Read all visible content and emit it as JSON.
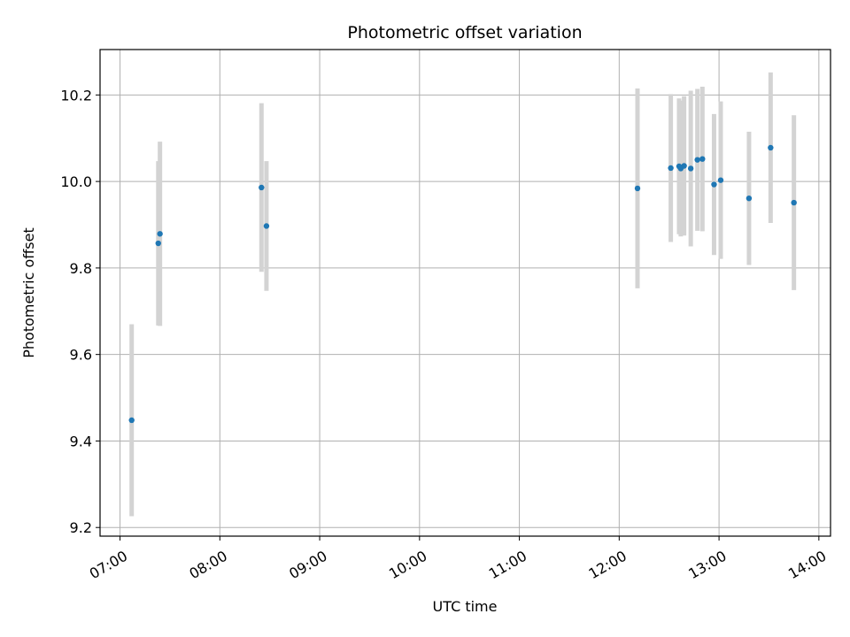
{
  "chart_data": {
    "type": "scatter",
    "title": "Photometric offset variation",
    "xlabel": "UTC time",
    "ylabel": "Photometric offset",
    "grid": true,
    "legend": "none",
    "colors": {
      "point": "#1f77b4",
      "errorbar": "#d3d3d3",
      "grid": "#b0b0b0"
    },
    "x_ticks": [
      "07:00",
      "08:00",
      "09:00",
      "10:00",
      "11:00",
      "12:00",
      "13:00",
      "14:00"
    ],
    "y_ticks": [
      "9.2",
      "9.4",
      "9.6",
      "9.8",
      "10.0",
      "10.2"
    ],
    "xlim": [
      "06:48",
      "14:07"
    ],
    "ylim": [
      9.18,
      10.305
    ],
    "points": [
      {
        "x": "07:07",
        "y": 9.448,
        "err": 0.222
      },
      {
        "x": "07:23",
        "y": 9.857,
        "err": 0.19
      },
      {
        "x": "07:24",
        "y": 9.879,
        "err": 0.213
      },
      {
        "x": "08:25",
        "y": 9.986,
        "err": 0.195
      },
      {
        "x": "08:28",
        "y": 9.897,
        "err": 0.15
      },
      {
        "x": "12:11",
        "y": 9.984,
        "err": 0.231
      },
      {
        "x": "12:31",
        "y": 10.031,
        "err": 0.171
      },
      {
        "x": "12:36",
        "y": 10.035,
        "err": 0.157
      },
      {
        "x": "12:37",
        "y": 10.03,
        "err": 0.157
      },
      {
        "x": "12:39",
        "y": 10.036,
        "err": 0.161
      },
      {
        "x": "12:43",
        "y": 10.03,
        "err": 0.18
      },
      {
        "x": "12:47",
        "y": 10.05,
        "err": 0.164
      },
      {
        "x": "12:50",
        "y": 10.052,
        "err": 0.167
      },
      {
        "x": "12:57",
        "y": 9.993,
        "err": 0.163
      },
      {
        "x": "13:01",
        "y": 10.003,
        "err": 0.182
      },
      {
        "x": "13:18",
        "y": 9.961,
        "err": 0.154
      },
      {
        "x": "13:31",
        "y": 10.078,
        "err": 0.174
      },
      {
        "x": "13:45",
        "y": 9.951,
        "err": 0.202
      }
    ]
  }
}
